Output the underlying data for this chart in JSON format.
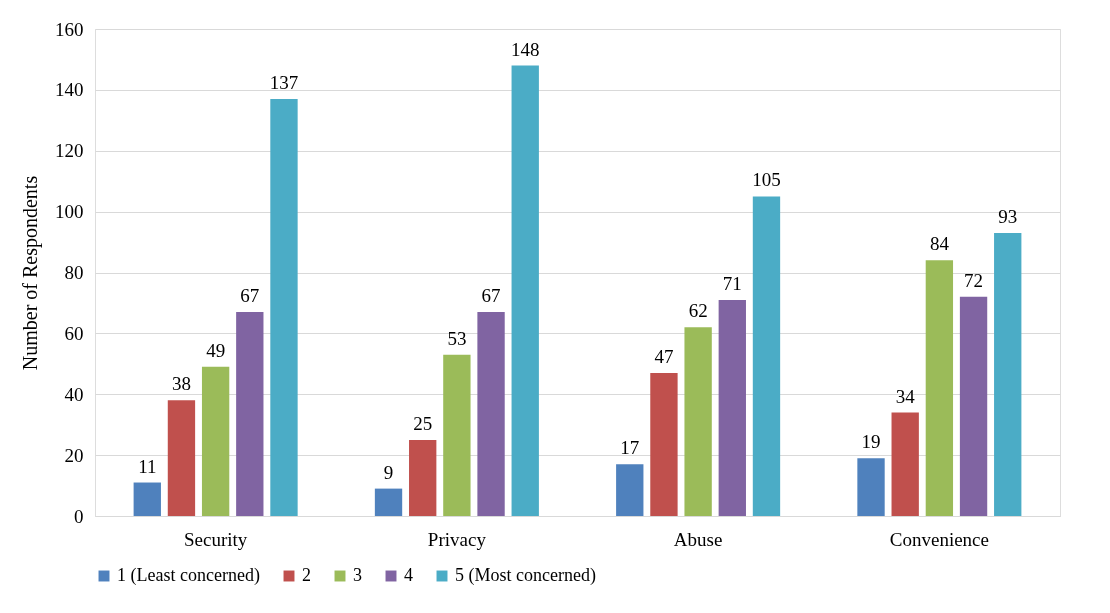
{
  "chart_data": {
    "type": "bar",
    "ylabel": "Number of Respondents",
    "categories": [
      "Security",
      "Privacy",
      "Abuse",
      "Convenience"
    ],
    "series": [
      {
        "name": "1 (Least concerned)",
        "color": "#4f81bd",
        "values": [
          11,
          9,
          17,
          19
        ]
      },
      {
        "name": "2",
        "color": "#c0504d",
        "values": [
          38,
          25,
          47,
          34
        ]
      },
      {
        "name": "3",
        "color": "#9bbb59",
        "values": [
          49,
          53,
          62,
          84
        ]
      },
      {
        "name": "4",
        "color": "#8064a2",
        "values": [
          67,
          67,
          71,
          72
        ]
      },
      {
        "name": "5 (Most concerned)",
        "color": "#4bacc6",
        "values": [
          137,
          148,
          105,
          93
        ]
      }
    ],
    "ylim": [
      0,
      160
    ],
    "yticks": [
      0,
      20,
      40,
      60,
      80,
      100,
      120,
      140,
      160
    ],
    "grid": "y",
    "legend": "bottom",
    "data_labels": true
  }
}
